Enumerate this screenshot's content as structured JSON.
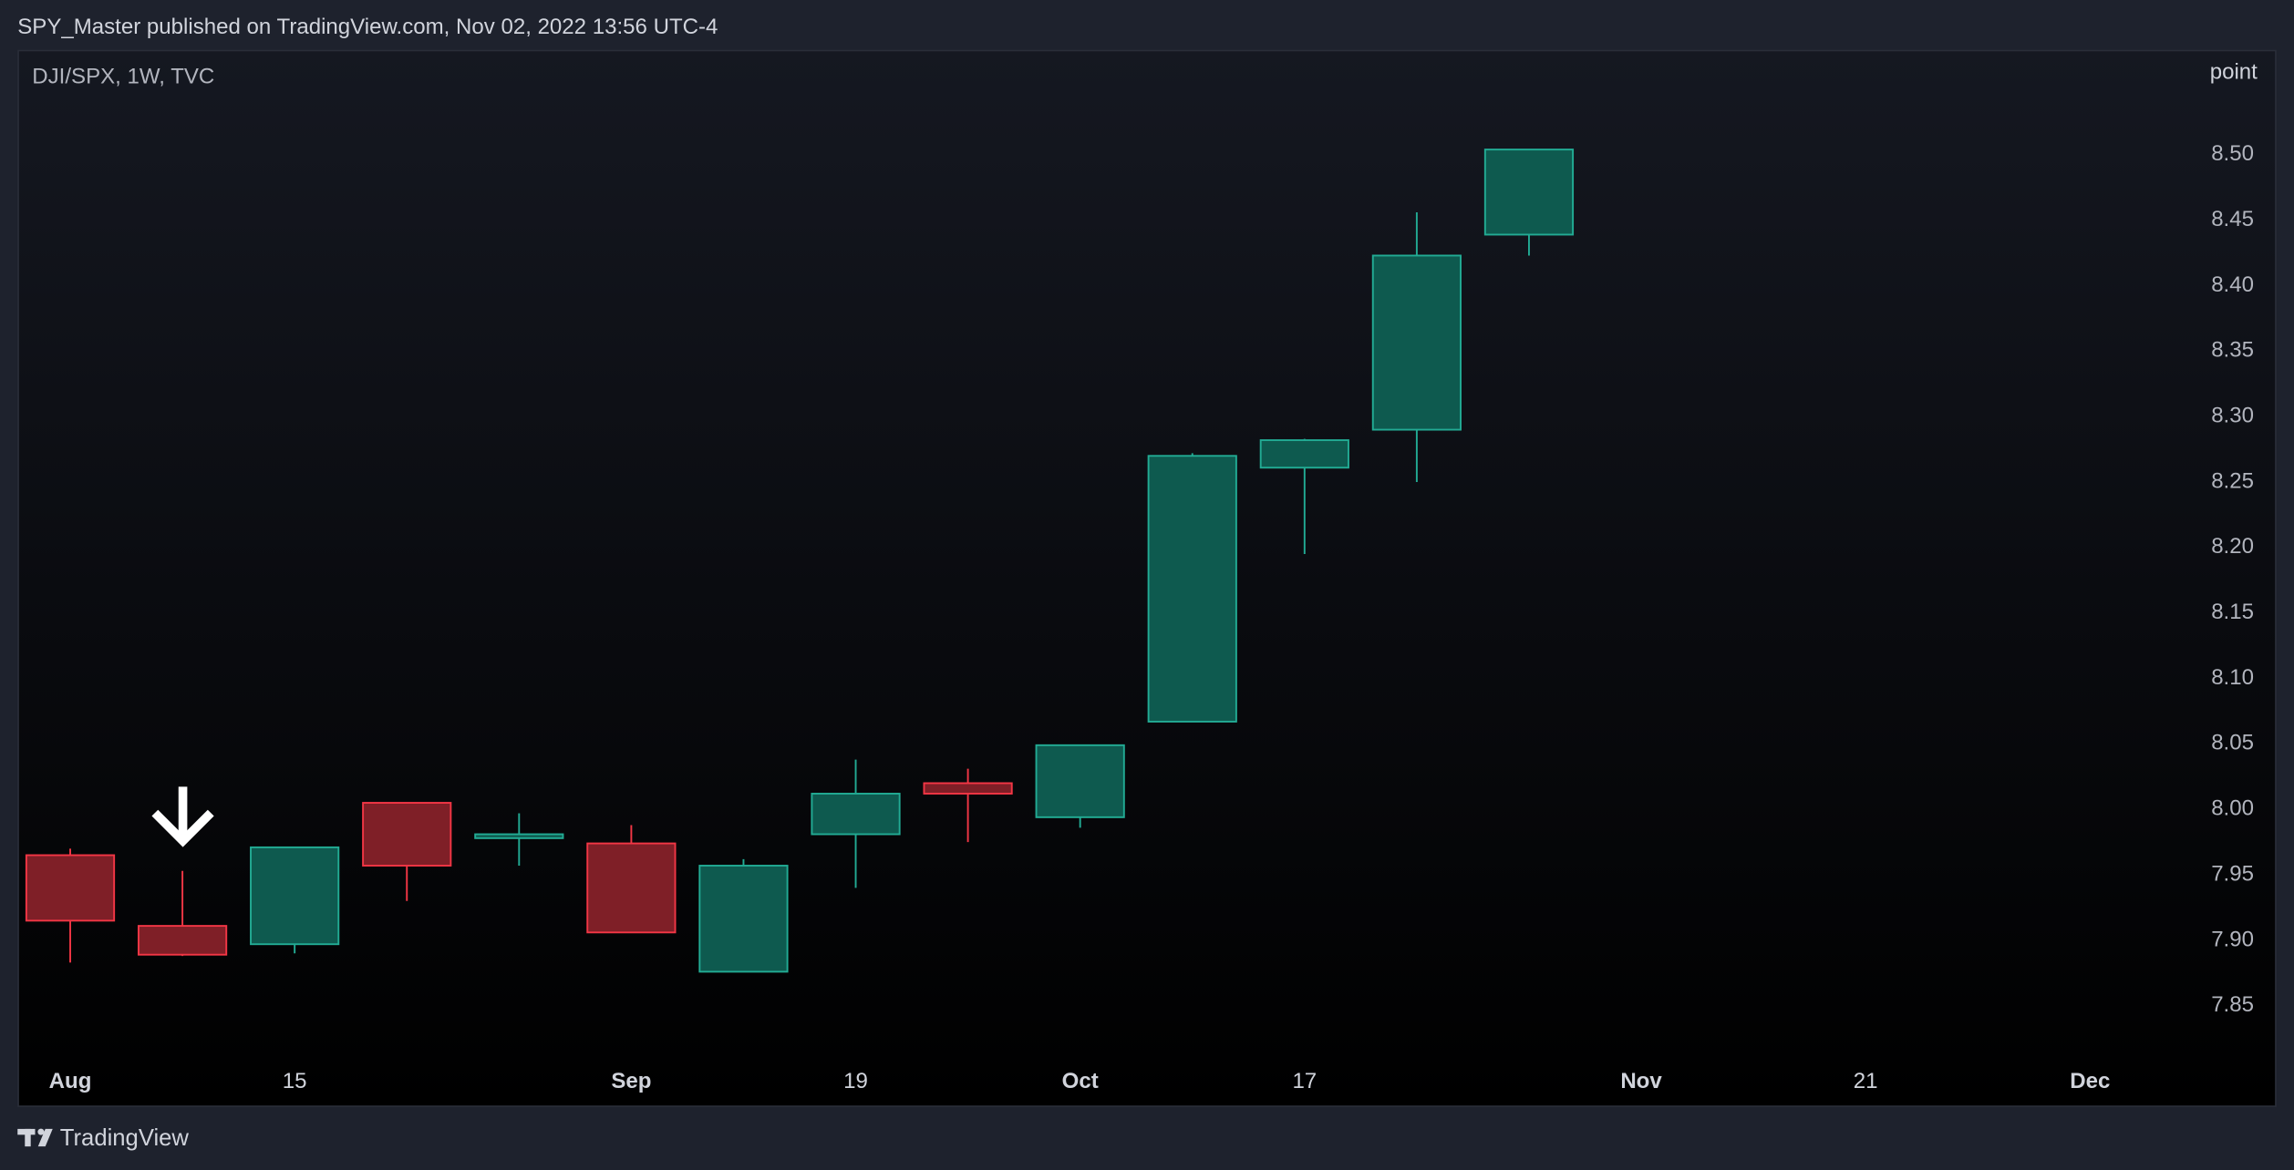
{
  "header": {
    "title": "SPY_Master published on TradingView.com, Nov 02, 2022 13:56 UTC-4"
  },
  "chart_data": {
    "type": "candlestick",
    "title": "DJI/SPX, 1W, TVC",
    "y_axis_label": "point",
    "categories": [
      "Aug",
      null,
      "15",
      null,
      null,
      "Sep",
      null,
      "19",
      null,
      "Oct",
      null,
      "17",
      null,
      null,
      "Nov",
      null,
      "21",
      null,
      "Dec"
    ],
    "open": [
      7.965,
      7.911,
      7.897,
      8.005,
      7.978,
      7.974,
      7.876,
      7.981,
      8.02,
      7.994,
      8.067,
      8.261,
      8.29,
      8.439,
      null,
      null,
      null,
      null,
      null
    ],
    "high": [
      7.97,
      7.953,
      7.971,
      8.005,
      7.997,
      7.988,
      7.962,
      8.038,
      8.031,
      8.049,
      8.272,
      8.283,
      8.456,
      8.504,
      null,
      null,
      null,
      null,
      null
    ],
    "low": [
      7.883,
      7.888,
      7.89,
      7.93,
      7.957,
      7.906,
      7.876,
      7.94,
      7.975,
      7.986,
      8.067,
      8.195,
      8.25,
      8.423,
      null,
      null,
      null,
      null,
      null
    ],
    "close": [
      7.915,
      7.889,
      7.971,
      7.957,
      7.981,
      7.906,
      7.957,
      8.012,
      8.012,
      8.049,
      8.27,
      8.282,
      8.423,
      8.504,
      null,
      null,
      null,
      null,
      null
    ],
    "up_color": "#22ab94",
    "up_fill": "#0e5a4f",
    "down_color": "#f23645",
    "down_fill": "#7f1f27",
    "ylim": [
      7.814,
      8.579
    ],
    "yticks": [
      7.85,
      {
        "value": 7.9,
        "label": "7.90"
      },
      7.95,
      {
        "value": 8,
        "label": "8.00"
      },
      8.05,
      {
        "value": 8.1,
        "label": "8.10"
      },
      8.15,
      {
        "value": 8.2,
        "label": "8.20"
      },
      8.25,
      {
        "value": 8.3,
        "label": "8.30"
      },
      8.35,
      {
        "value": 8.4,
        "label": "8.40"
      },
      8.45,
      {
        "value": 8.5,
        "label": "8.50"
      }
    ],
    "grid": false
  },
  "footer": {
    "brand": "TradingView"
  }
}
